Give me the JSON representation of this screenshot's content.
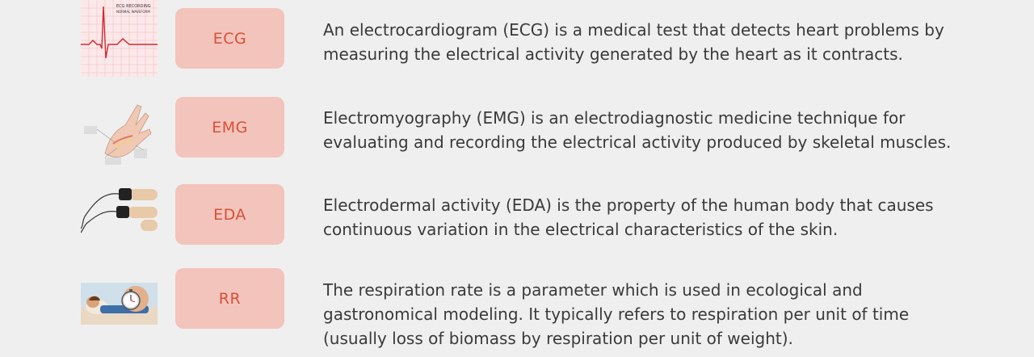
{
  "items": [
    {
      "label": "ECG",
      "thumb_text": [
        "ECG RECORDING",
        "NORMAL WAVEFORM"
      ],
      "description": "An electrocardiogram (ECG) is a medical test that detects heart problems by measuring the electrical activity generated by the heart as it contracts.",
      "lines": [
        "An electrocardiogram (ECG) is a medical test that detects heart problems by",
        "measuring the electrical activity generated by the heart as it contracts."
      ]
    },
    {
      "label": "EMG",
      "lines": [
        "Electromyography (EMG) is an electrodiagnostic medicine technique for",
        "evaluating and recording the electrical activity produced by skeletal muscles."
      ]
    },
    {
      "label": "EDA",
      "lines": [
        "Electrodermal activity (EDA) is the property of the human body that causes",
        "continuous variation in the electrical characteristics of the skin."
      ]
    },
    {
      "label": "RR",
      "lines": [
        "The respiration rate is a parameter which is used in ecological and",
        "gastronomical modeling. It typically refers to respiration per unit of time",
        "(usually loss of biomass by respiration per unit of weight)."
      ]
    }
  ],
  "colors": {
    "background": "#efefef",
    "badge_bg": "#f2c4bb",
    "badge_text": "#d9503a",
    "body_text": "#3a3a3a"
  }
}
